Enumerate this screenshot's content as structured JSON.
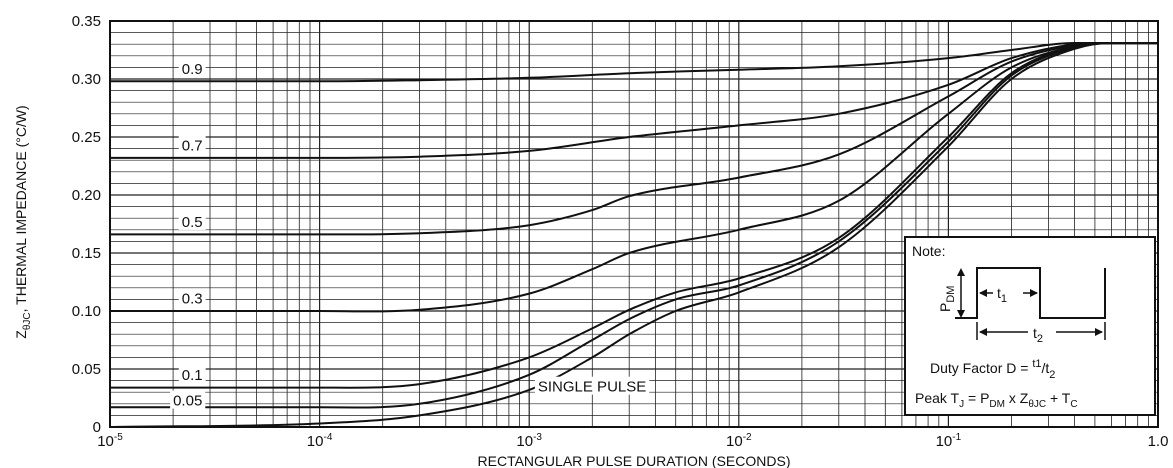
{
  "chart_data": {
    "type": "line",
    "x_scale": "log",
    "xlim": [
      1e-05,
      1.0
    ],
    "ylim": [
      0,
      0.35
    ],
    "xlabel": "RECTANGULAR PULSE DURATION (SECONDS)",
    "ylabel_main": "Z",
    "ylabel_sub": "θJC",
    "ylabel_rest": ", THERMAL IMPEDANCE (°C/W)",
    "x_ticks": [
      {
        "value": 1e-05,
        "base": "10",
        "exp": "-5"
      },
      {
        "value": 0.0001,
        "base": "10",
        "exp": "-4"
      },
      {
        "value": 0.001,
        "base": "10",
        "exp": "-3"
      },
      {
        "value": 0.01,
        "base": "10",
        "exp": "-2"
      },
      {
        "value": 0.1,
        "base": "10",
        "exp": "-1"
      },
      {
        "value": 1.0,
        "base": "1.0",
        "exp": ""
      }
    ],
    "y_ticks": [
      {
        "value": 0,
        "label": "0"
      },
      {
        "value": 0.05,
        "label": "0.05"
      },
      {
        "value": 0.1,
        "label": "0.10"
      },
      {
        "value": 0.15,
        "label": "0.15"
      },
      {
        "value": 0.2,
        "label": "0.20"
      },
      {
        "value": 0.25,
        "label": "0.25"
      },
      {
        "value": 0.3,
        "label": "0.30"
      },
      {
        "value": 0.35,
        "label": "0.35"
      }
    ],
    "grid": true,
    "series": [
      {
        "name": "0.9",
        "x": [
          1e-05,
          0.0001,
          0.0003,
          0.001,
          0.003,
          0.01,
          0.03,
          0.1,
          0.2,
          0.4,
          0.6,
          1.0
        ],
        "y": [
          0.298,
          0.298,
          0.299,
          0.301,
          0.305,
          0.308,
          0.311,
          0.318,
          0.325,
          0.331,
          0.331,
          0.331
        ]
      },
      {
        "name": "0.7",
        "x": [
          1e-05,
          0.0001,
          0.0003,
          0.001,
          0.003,
          0.01,
          0.03,
          0.1,
          0.2,
          0.4,
          0.6,
          1.0
        ],
        "y": [
          0.232,
          0.232,
          0.233,
          0.238,
          0.25,
          0.26,
          0.27,
          0.295,
          0.318,
          0.33,
          0.331,
          0.331
        ]
      },
      {
        "name": "0.5",
        "x": [
          1e-05,
          0.0001,
          0.0003,
          0.001,
          0.002,
          0.003,
          0.01,
          0.03,
          0.1,
          0.2,
          0.4,
          0.6,
          1.0
        ],
        "y": [
          0.166,
          0.166,
          0.167,
          0.174,
          0.187,
          0.199,
          0.215,
          0.235,
          0.285,
          0.315,
          0.329,
          0.331,
          0.331
        ]
      },
      {
        "name": "0.3",
        "x": [
          1e-05,
          0.0001,
          0.0003,
          0.001,
          0.002,
          0.003,
          0.01,
          0.03,
          0.1,
          0.2,
          0.4,
          0.6,
          1.0
        ],
        "y": [
          0.1,
          0.1,
          0.101,
          0.115,
          0.136,
          0.15,
          0.17,
          0.195,
          0.27,
          0.31,
          0.328,
          0.331,
          0.331
        ]
      },
      {
        "name": "0.1",
        "x": [
          1e-05,
          0.0001,
          0.0003,
          0.001,
          0.002,
          0.003,
          0.005,
          0.01,
          0.03,
          0.1,
          0.2,
          0.4,
          0.6,
          1.0
        ],
        "y": [
          0.034,
          0.034,
          0.037,
          0.06,
          0.085,
          0.101,
          0.116,
          0.128,
          0.163,
          0.25,
          0.305,
          0.328,
          0.331,
          0.331
        ]
      },
      {
        "name": "0.05",
        "x": [
          1e-05,
          0.0001,
          0.0003,
          0.001,
          0.002,
          0.003,
          0.005,
          0.01,
          0.03,
          0.1,
          0.2,
          0.4,
          0.6,
          1.0
        ],
        "y": [
          0.017,
          0.017,
          0.02,
          0.045,
          0.075,
          0.093,
          0.11,
          0.122,
          0.16,
          0.246,
          0.303,
          0.327,
          0.331,
          0.331
        ]
      },
      {
        "name": "SINGLE PULSE",
        "x": [
          1e-05,
          0.0001,
          0.0003,
          0.001,
          0.002,
          0.003,
          0.005,
          0.01,
          0.03,
          0.1,
          0.2,
          0.4,
          0.6,
          1.0
        ],
        "y": [
          0.0,
          0.003,
          0.01,
          0.032,
          0.06,
          0.08,
          0.1,
          0.116,
          0.155,
          0.242,
          0.3,
          0.326,
          0.331,
          0.331
        ]
      }
    ],
    "curve_labels": [
      {
        "text": "0.9",
        "x": 2.2e-05,
        "y": 0.301
      },
      {
        "text": "0.7",
        "x": 2.2e-05,
        "y": 0.235
      },
      {
        "text": "0.5",
        "x": 2.2e-05,
        "y": 0.169
      },
      {
        "text": "0.3",
        "x": 2.2e-05,
        "y": 0.103
      },
      {
        "text": "0.1",
        "x": 2.2e-05,
        "y": 0.037
      },
      {
        "text": "0.05",
        "x": 2e-05,
        "y": 0.015
      },
      {
        "text": "SINGLE PULSE",
        "x": 0.0011,
        "y": 0.027
      }
    ]
  },
  "note": {
    "title": "Note:",
    "p_dm_main": "P",
    "p_dm_sub": "DM",
    "t1_main": "t",
    "t1_sub": "1",
    "t2_main": "t",
    "t2_sub": "2",
    "duty_prefix": "Duty Factor  D = ",
    "duty_t1_main": "t",
    "duty_t1_sub": "1",
    "duty_slash": "/",
    "duty_t2_main": "t",
    "duty_t2_sub": "2",
    "peak_prefix": "Peak T",
    "peak_j_sub": "J",
    "peak_eq": " = P",
    "peak_dm_sub": "DM",
    "peak_times": " x Z",
    "peak_theta_sub": "θJC",
    "peak_plus": " + T",
    "peak_c_sub": "C"
  }
}
